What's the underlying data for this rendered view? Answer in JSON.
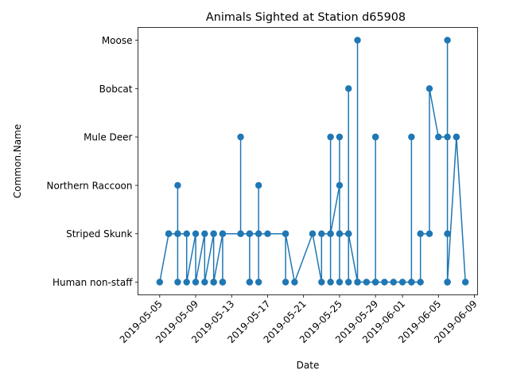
{
  "chart_data": {
    "type": "line",
    "title": "Animals Sighted at Station d65908",
    "xlabel": "Date",
    "ylabel": "Common.Name",
    "categories": [
      "Human non-staff",
      "Striped Skunk",
      "Northern Raccoon",
      "Mule Deer",
      "Bobcat",
      "Moose"
    ],
    "x_ticks": [
      "2019-05-05",
      "2019-05-09",
      "2019-05-13",
      "2019-05-17",
      "2019-05-21",
      "2019-05-25",
      "2019-05-29",
      "2019-06-01",
      "2019-06-05",
      "2019-06-09"
    ],
    "xlim": [
      "2019-05-04",
      "2019-06-09"
    ],
    "grid": false,
    "legend": "none",
    "color": "#1f77b4",
    "series": [
      {
        "points": [
          [
            "2019-05-05",
            "Human non-staff"
          ],
          [
            "2019-05-06",
            "Striped Skunk"
          ],
          [
            "2019-05-06",
            "Striped Skunk"
          ],
          [
            "2019-05-06",
            "Striped Skunk"
          ],
          [
            "2019-05-07",
            "Striped Skunk"
          ],
          [
            "2019-05-07",
            "Northern Raccoon"
          ],
          [
            "2019-05-07",
            "Human non-staff"
          ],
          [
            "2019-05-07",
            "Striped Skunk"
          ],
          [
            "2019-05-08",
            "Striped Skunk"
          ],
          [
            "2019-05-08",
            "Human non-staff"
          ],
          [
            "2019-05-09",
            "Striped Skunk"
          ],
          [
            "2019-05-09",
            "Human non-staff"
          ],
          [
            "2019-05-10",
            "Striped Skunk"
          ],
          [
            "2019-05-10",
            "Human non-staff"
          ],
          [
            "2019-05-11",
            "Striped Skunk"
          ],
          [
            "2019-05-11",
            "Striped Skunk"
          ],
          [
            "2019-05-11",
            "Human non-staff"
          ],
          [
            "2019-05-11",
            "Human non-staff"
          ],
          [
            "2019-05-12",
            "Striped Skunk"
          ],
          [
            "2019-05-12",
            "Human non-staff"
          ],
          [
            "2019-05-12",
            "Human non-staff"
          ],
          [
            "2019-05-12",
            "Striped Skunk"
          ],
          [
            "2019-05-14",
            "Striped Skunk"
          ],
          [
            "2019-05-14",
            "Mule Deer"
          ],
          [
            "2019-05-14",
            "Striped Skunk"
          ],
          [
            "2019-05-15",
            "Striped Skunk"
          ],
          [
            "2019-05-15",
            "Human non-staff"
          ],
          [
            "2019-05-15",
            "Striped Skunk"
          ],
          [
            "2019-05-15",
            "Human non-staff"
          ],
          [
            "2019-05-15",
            "Striped Skunk"
          ],
          [
            "2019-05-16",
            "Striped Skunk"
          ],
          [
            "2019-05-16",
            "Northern Raccoon"
          ],
          [
            "2019-05-16",
            "Human non-staff"
          ],
          [
            "2019-05-16",
            "Striped Skunk"
          ],
          [
            "2019-05-17",
            "Striped Skunk"
          ],
          [
            "2019-05-19",
            "Striped Skunk"
          ],
          [
            "2019-05-19",
            "Human non-staff"
          ],
          [
            "2019-05-19",
            "Striped Skunk"
          ],
          [
            "2019-05-20",
            "Human non-staff"
          ],
          [
            "2019-05-22",
            "Striped Skunk"
          ],
          [
            "2019-05-23",
            "Human non-staff"
          ],
          [
            "2019-05-23",
            "Striped Skunk"
          ],
          [
            "2019-05-24",
            "Striped Skunk"
          ],
          [
            "2019-05-24",
            "Mule Deer"
          ],
          [
            "2019-05-24",
            "Human non-staff"
          ],
          [
            "2019-05-24",
            "Striped Skunk"
          ],
          [
            "2019-05-25",
            "Northern Raccoon"
          ],
          [
            "2019-05-25",
            "Striped Skunk"
          ],
          [
            "2019-05-25",
            "Mule Deer"
          ],
          [
            "2019-05-25",
            "Human non-staff"
          ],
          [
            "2019-05-25",
            "Striped Skunk"
          ],
          [
            "2019-05-26",
            "Striped Skunk"
          ],
          [
            "2019-05-26",
            "Bobcat"
          ],
          [
            "2019-05-26",
            "Human non-staff"
          ],
          [
            "2019-05-26",
            "Striped Skunk"
          ],
          [
            "2019-05-27",
            "Human non-staff"
          ],
          [
            "2019-05-27",
            "Moose"
          ],
          [
            "2019-05-27",
            "Human non-staff"
          ],
          [
            "2019-05-28",
            "Human non-staff"
          ],
          [
            "2019-05-29",
            "Human non-staff"
          ],
          [
            "2019-05-29",
            "Mule Deer"
          ],
          [
            "2019-05-29",
            "Mule Deer"
          ],
          [
            "2019-05-29",
            "Human non-staff"
          ],
          [
            "2019-05-30",
            "Human non-staff"
          ],
          [
            "2019-05-31",
            "Human non-staff"
          ],
          [
            "2019-06-01",
            "Human non-staff"
          ],
          [
            "2019-06-02",
            "Human non-staff"
          ],
          [
            "2019-06-02",
            "Mule Deer"
          ],
          [
            "2019-06-02",
            "Human non-staff"
          ],
          [
            "2019-06-03",
            "Human non-staff"
          ],
          [
            "2019-06-03",
            "Striped Skunk"
          ],
          [
            "2019-06-04",
            "Striped Skunk"
          ],
          [
            "2019-06-04",
            "Bobcat"
          ],
          [
            "2019-06-05",
            "Mule Deer"
          ],
          [
            "2019-06-06",
            "Mule Deer"
          ],
          [
            "2019-06-06",
            "Striped Skunk"
          ],
          [
            "2019-06-06",
            "Striped Skunk"
          ],
          [
            "2019-06-06",
            "Moose"
          ],
          [
            "2019-06-06",
            "Human non-staff"
          ],
          [
            "2019-06-06",
            "Human non-staff"
          ],
          [
            "2019-06-06",
            "Human non-staff"
          ],
          [
            "2019-06-07",
            "Mule Deer"
          ],
          [
            "2019-06-07",
            "Mule Deer"
          ],
          [
            "2019-06-08",
            "Human non-staff"
          ]
        ]
      }
    ]
  }
}
